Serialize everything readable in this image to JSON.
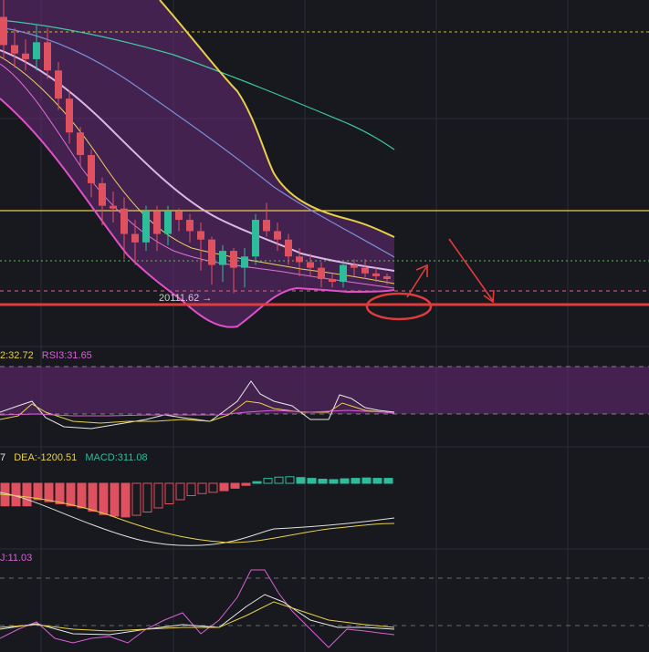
{
  "colors": {
    "background": "#17191e",
    "grid": "#2a2d35",
    "candle_up": "#2ebd9b",
    "candle_down": "#e0515f",
    "band_fill": "#6a2a7a",
    "annotation": "#e23b3b",
    "ma_pink": "#e070d8",
    "ma_light": "#d9b8e6",
    "ma_yellow": "#f0d060",
    "ma_blue": "#7a8fd8",
    "ma_teal": "#3fc9a0",
    "rsi_white": "#e8e8e8",
    "rsi_yellow": "#e8d048",
    "rsi_pink": "#d860d8"
  },
  "main": {
    "price_label": "20111.62",
    "price_arrow": "→"
  },
  "rsi": {
    "readout_value": "2:32.72",
    "readout_rsi3": "RSI3:31.65"
  },
  "macd": {
    "readout_dif": "7",
    "readout_dea": "DEA:-1200.51",
    "readout_macd": "MACD:311.08"
  },
  "kdj": {
    "readout_j": "J:11.03"
  },
  "chart_data": {
    "type": "candlestick",
    "candles": [
      {
        "o": 20620,
        "h": 20650,
        "l": 20545,
        "c": 20570
      },
      {
        "o": 20570,
        "h": 20600,
        "l": 20530,
        "c": 20555
      },
      {
        "o": 20555,
        "h": 20580,
        "l": 20525,
        "c": 20545
      },
      {
        "o": 20545,
        "h": 20605,
        "l": 20525,
        "c": 20575
      },
      {
        "o": 20575,
        "h": 20600,
        "l": 20510,
        "c": 20525
      },
      {
        "o": 20525,
        "h": 20540,
        "l": 20455,
        "c": 20475
      },
      {
        "o": 20475,
        "h": 20490,
        "l": 20395,
        "c": 20415
      },
      {
        "o": 20415,
        "h": 20425,
        "l": 20355,
        "c": 20375
      },
      {
        "o": 20375,
        "h": 20385,
        "l": 20300,
        "c": 20325
      },
      {
        "o": 20325,
        "h": 20335,
        "l": 20250,
        "c": 20285
      },
      {
        "o": 20285,
        "h": 20310,
        "l": 20255,
        "c": 20280
      },
      {
        "o": 20280,
        "h": 20300,
        "l": 20190,
        "c": 20235
      },
      {
        "o": 20235,
        "h": 20260,
        "l": 20180,
        "c": 20220
      },
      {
        "o": 20220,
        "h": 20285,
        "l": 20205,
        "c": 20275
      },
      {
        "o": 20275,
        "h": 20285,
        "l": 20205,
        "c": 20235
      },
      {
        "o": 20235,
        "h": 20285,
        "l": 20215,
        "c": 20275
      },
      {
        "o": 20275,
        "h": 20280,
        "l": 20240,
        "c": 20260
      },
      {
        "o": 20260,
        "h": 20270,
        "l": 20220,
        "c": 20240
      },
      {
        "o": 20240,
        "h": 20255,
        "l": 20170,
        "c": 20225
      },
      {
        "o": 20225,
        "h": 20230,
        "l": 20145,
        "c": 20180
      },
      {
        "o": 20180,
        "h": 20215,
        "l": 20150,
        "c": 20205
      },
      {
        "o": 20205,
        "h": 20210,
        "l": 20130,
        "c": 20175
      },
      {
        "o": 20175,
        "h": 20210,
        "l": 20140,
        "c": 20195
      },
      {
        "o": 20195,
        "h": 20270,
        "l": 20180,
        "c": 20260
      },
      {
        "o": 20260,
        "h": 20290,
        "l": 20230,
        "c": 20240
      },
      {
        "o": 20240,
        "h": 20255,
        "l": 20205,
        "c": 20225
      },
      {
        "o": 20225,
        "h": 20235,
        "l": 20180,
        "c": 20195
      },
      {
        "o": 20195,
        "h": 20210,
        "l": 20160,
        "c": 20185
      },
      {
        "o": 20185,
        "h": 20200,
        "l": 20160,
        "c": 20175
      },
      {
        "o": 20175,
        "h": 20185,
        "l": 20140,
        "c": 20155
      },
      {
        "o": 20155,
        "h": 20165,
        "l": 20140,
        "c": 20150
      },
      {
        "o": 20150,
        "h": 20185,
        "l": 20140,
        "c": 20180
      },
      {
        "o": 20180,
        "h": 20190,
        "l": 20160,
        "c": 20175
      },
      {
        "o": 20175,
        "h": 20190,
        "l": 20155,
        "c": 20165
      },
      {
        "o": 20165,
        "h": 20175,
        "l": 20150,
        "c": 20160
      },
      {
        "o": 20160,
        "h": 20165,
        "l": 20145,
        "c": 20155
      }
    ],
    "support_level": 20111.62,
    "macd_hist": [
      -55,
      -55,
      -55,
      -40,
      -45,
      -50,
      -55,
      -60,
      -68,
      -76,
      -80,
      -82,
      -78,
      -70,
      -60,
      -50,
      -40,
      -30,
      -25,
      -22,
      -18,
      -12,
      -5,
      4,
      12,
      15,
      16,
      14,
      12,
      10,
      9,
      11,
      12,
      13,
      12,
      12
    ]
  }
}
